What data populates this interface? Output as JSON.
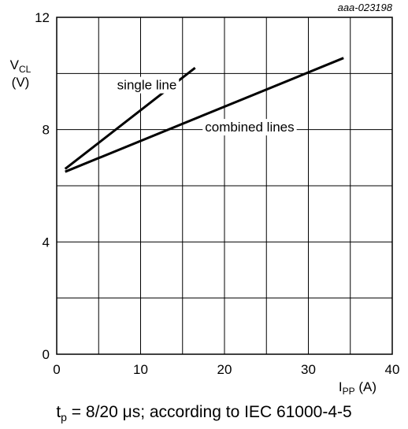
{
  "chart_data": {
    "type": "line",
    "figure_id": "aaa-023198",
    "xlabel": {
      "symbol": "I",
      "subscript": "PP",
      "unit": " (A)"
    },
    "ylabel": {
      "symbol": "V",
      "subscript": "CL",
      "unit": "(V)"
    },
    "xlim": [
      0,
      40
    ],
    "ylim": [
      0,
      12
    ],
    "x_ticks": [
      0,
      10,
      20,
      30,
      40
    ],
    "x_tick_labels": [
      "0",
      "10",
      "20",
      "30",
      "40"
    ],
    "y_ticks": [
      0,
      4,
      8,
      12
    ],
    "y_tick_labels": [
      "0",
      "4",
      "8",
      "12"
    ],
    "grid": true,
    "x_grid_step": 5,
    "y_grid_step": 2,
    "series": [
      {
        "name": "single line",
        "x": [
          1,
          16.5
        ],
        "y": [
          6.6,
          10.2
        ],
        "color": "#000000"
      },
      {
        "name": "combined lines",
        "x": [
          1,
          34.2
        ],
        "y": [
          6.5,
          10.55
        ],
        "color": "#000000"
      }
    ]
  },
  "caption": {
    "prefix": "t",
    "subscript": "p",
    "text": " = 8/20 μs; according to IEC 61000-4-5"
  }
}
